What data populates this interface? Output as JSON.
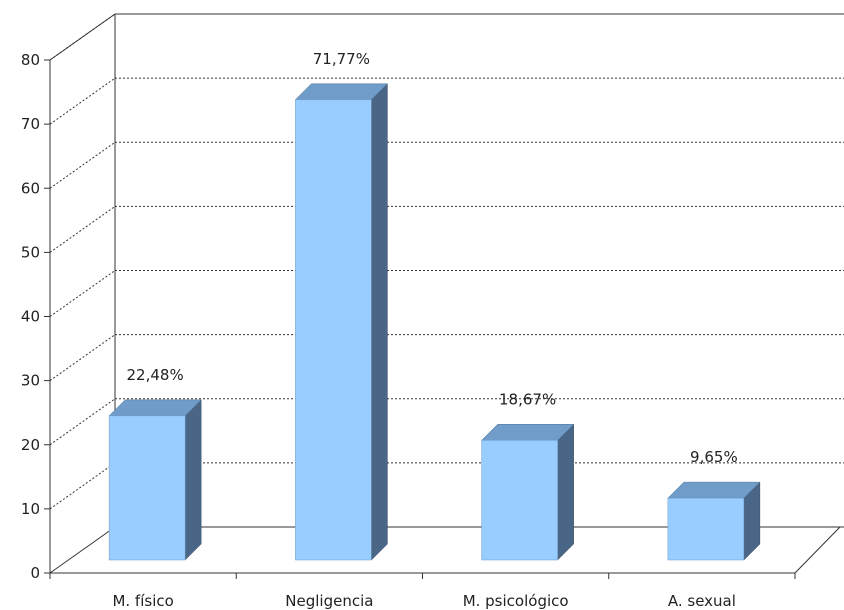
{
  "chart_data": {
    "type": "bar",
    "style": "3d",
    "categories": [
      "M. físico",
      "Negligencia",
      "M. psicológico",
      "A. sexual"
    ],
    "values": [
      22.48,
      71.77,
      18.67,
      9.65
    ],
    "data_labels": [
      "22,48%",
      "71,77%",
      "18,67%",
      "9,65%"
    ],
    "y_ticks": [
      "0",
      "10",
      "20",
      "30",
      "40",
      "50",
      "60",
      "70",
      "80"
    ],
    "ylim": [
      0,
      80
    ],
    "grid": true,
    "legend": false,
    "title": "",
    "xlabel": "",
    "ylabel": "",
    "colors": {
      "bar_front": "#99ccff",
      "bar_top": "#6f9cc9",
      "bar_side": "#4a6686",
      "axis": "#333333",
      "grid": "#333333"
    }
  }
}
